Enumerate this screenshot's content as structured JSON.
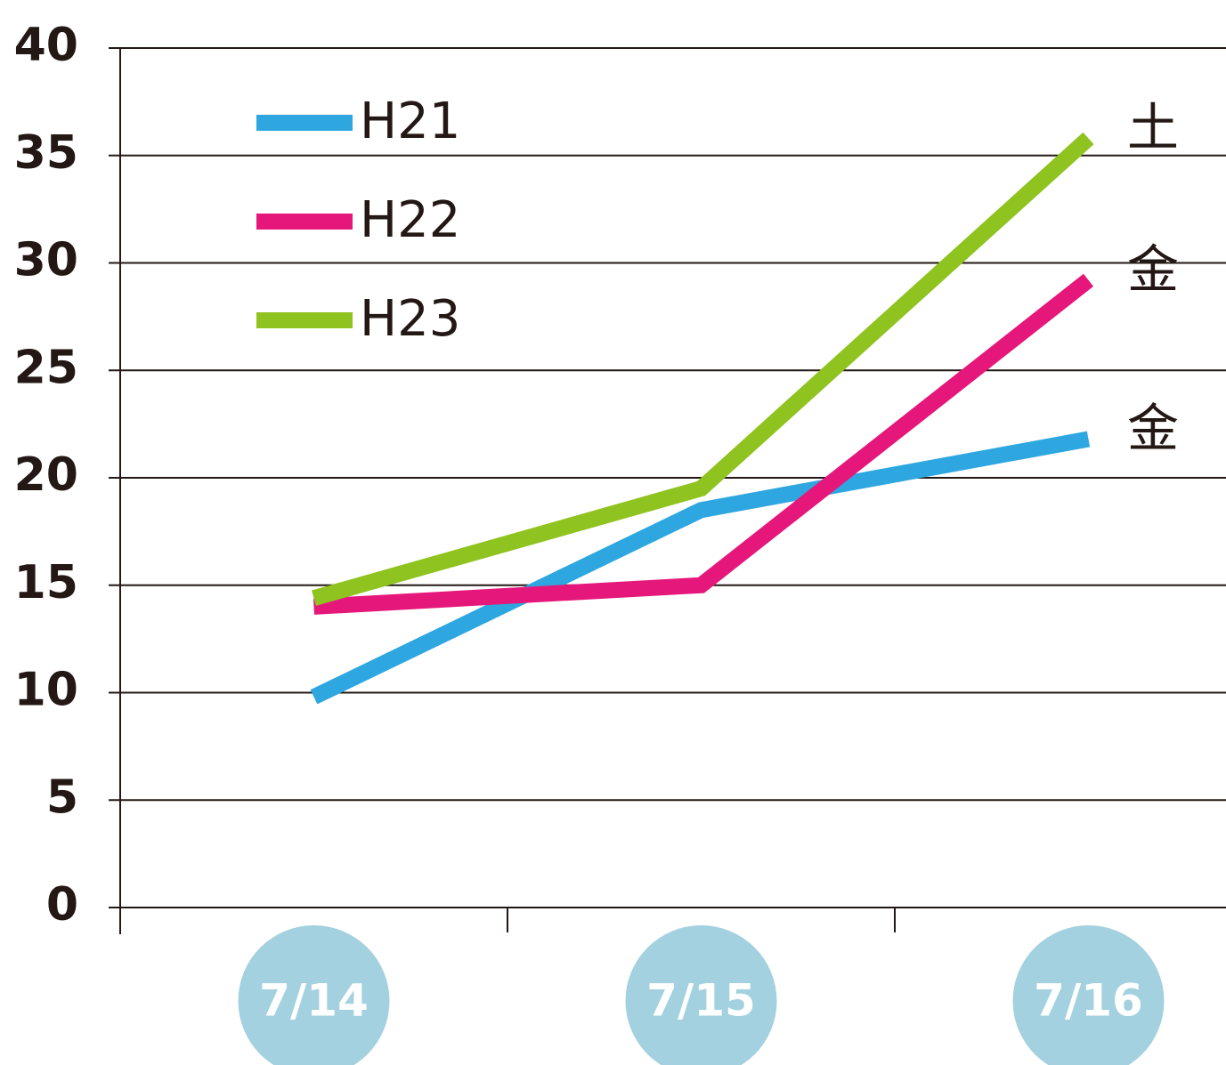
{
  "chart_data": {
    "type": "line",
    "categories": [
      "7/14",
      "7/15",
      "7/16"
    ],
    "series": [
      {
        "name": "H21",
        "color": "#2ea7e0",
        "values": [
          9.8,
          18.5,
          21.8
        ]
      },
      {
        "name": "H22",
        "color": "#e5177a",
        "values": [
          14.0,
          15.0,
          29.2
        ]
      },
      {
        "name": "H23",
        "color": "#8fc31f",
        "values": [
          14.4,
          19.5,
          35.8
        ]
      }
    ],
    "annotations": [
      "金",
      "金",
      "土"
    ],
    "ylim": [
      0,
      40
    ],
    "yticks": [
      0,
      5,
      10,
      15,
      20,
      25,
      30,
      35,
      40
    ],
    "grid": true,
    "legend": "top-left"
  }
}
